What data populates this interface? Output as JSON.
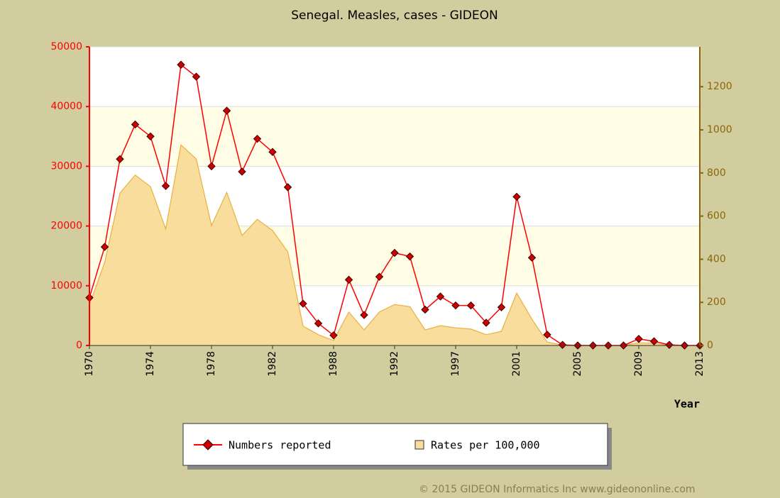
{
  "chart_data": {
    "type": "line",
    "title": "Senegal. Measles, cases - GIDEON",
    "x_label": "Year",
    "categories": [
      "1970",
      null,
      null,
      null,
      "1974",
      null,
      null,
      null,
      "1978",
      null,
      null,
      null,
      "1982",
      null,
      null,
      null,
      "1988",
      null,
      null,
      null,
      "1992",
      null,
      null,
      null,
      "1997",
      null,
      null,
      null,
      "2001",
      null,
      null,
      null,
      "2005",
      null,
      null,
      null,
      "2009",
      null,
      null,
      null,
      "2013"
    ],
    "series": [
      {
        "name": "Rates per 100,000",
        "color": "#f9dd9c",
        "edge": "#e8b040",
        "axis": "y2",
        "kind": "area",
        "values": [
          190,
          385,
          707,
          790,
          737,
          540,
          930,
          865,
          556,
          710,
          510,
          585,
          533,
          434,
          90,
          50,
          23,
          155,
          72,
          155,
          190,
          180,
          72,
          92,
          82,
          76,
          50,
          66,
          243,
          122,
          16,
          1,
          0,
          0,
          0,
          0,
          13,
          10,
          0,
          0,
          0
        ]
      },
      {
        "name": "Numbers reported",
        "color": "#ff0000",
        "marker": "#cc0000",
        "kind": "line",
        "values": [
          8000,
          16500,
          31200,
          37000,
          35000,
          26700,
          47000,
          45000,
          30000,
          39300,
          29100,
          34600,
          32400,
          26500,
          7000,
          3700,
          1700,
          11000,
          5100,
          11500,
          15500,
          14900,
          6000,
          8200,
          6700,
          6700,
          3800,
          6400,
          24900,
          14700,
          1800,
          100,
          0,
          0,
          0,
          0,
          1100,
          700,
          100,
          0,
          0
        ]
      }
    ],
    "ylim": [
      0,
      50000
    ],
    "yticks": [
      0,
      10000,
      20000,
      30000,
      40000,
      50000
    ],
    "ycolor": "#ff0000",
    "y2lim": [
      0,
      1385
    ],
    "y2ticks": [
      0,
      200,
      400,
      600,
      800,
      1000,
      1200
    ],
    "y2color": "#8b6508",
    "grid": true,
    "band_color": "#fffde6",
    "source": "© 2015 GIDEON Informatics Inc www.gideononline.com"
  }
}
